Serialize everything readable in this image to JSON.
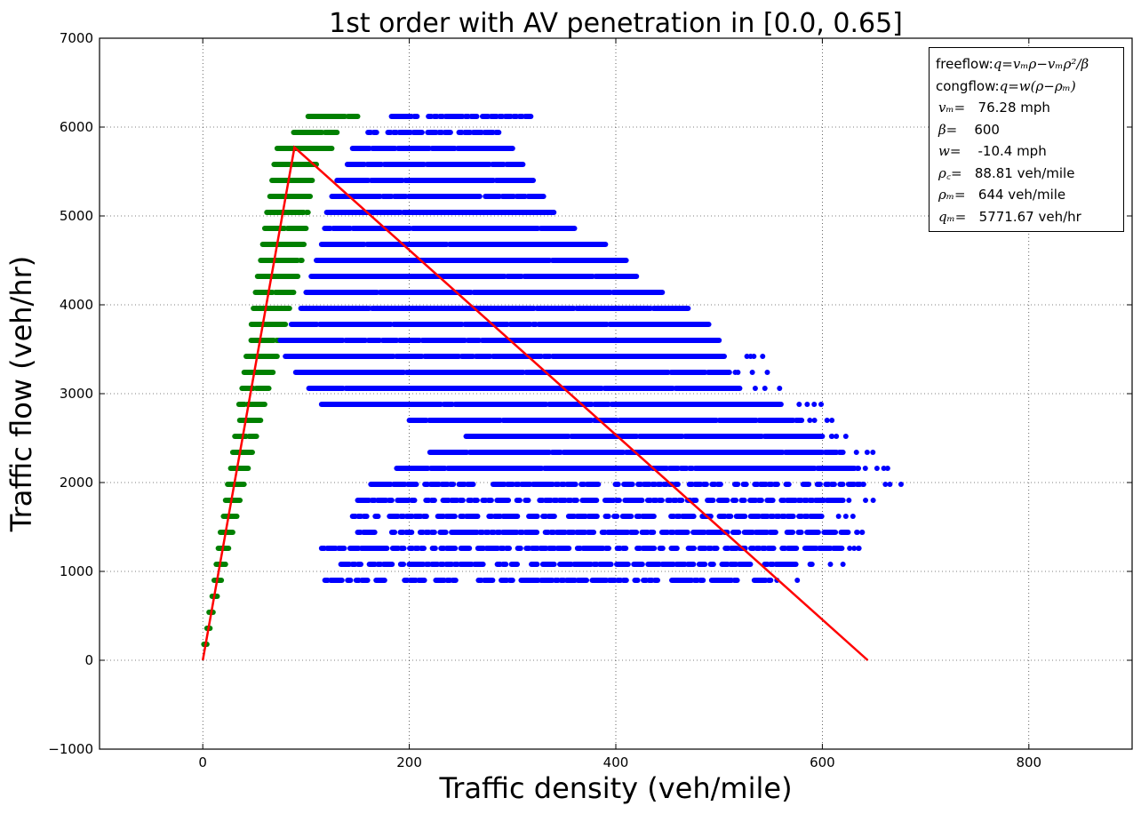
{
  "chart_data": {
    "type": "scatter",
    "title": "1st order with AV penetration in [0.0, 0.65]",
    "xlabel": "Traffic density (veh/mile)",
    "ylabel": "Traffic flow (veh/hr)",
    "xlim": [
      -100,
      900
    ],
    "ylim": [
      -1000,
      7000
    ],
    "xticks": [
      0,
      200,
      400,
      600,
      800
    ],
    "yticks": [
      -1000,
      0,
      1000,
      2000,
      3000,
      4000,
      5000,
      6000,
      7000
    ],
    "xtick_labels": [
      "0",
      "200",
      "400",
      "600",
      "800"
    ],
    "ytick_labels": [
      "−1000",
      "0",
      "1000",
      "2000",
      "3000",
      "4000",
      "5000",
      "6000",
      "7000"
    ],
    "grid": true,
    "flow_levels": [
      180,
      360,
      540,
      720,
      900,
      1080,
      1260,
      1440,
      1620,
      1800,
      1980,
      2160,
      2340,
      2520,
      2700,
      2880,
      3060,
      3240,
      3420,
      3600,
      3780,
      3960,
      4140,
      4320,
      4500,
      4680,
      4860,
      5040,
      5220,
      5400,
      5580,
      5760,
      5940,
      6120
    ],
    "series": [
      {
        "color": "#008000",
        "description": "freeflow data",
        "bands": [
          [
            1,
            4
          ],
          [
            4,
            7
          ],
          [
            6,
            10
          ],
          [
            9,
            14
          ],
          [
            11,
            18
          ],
          [
            13,
            22
          ],
          [
            15,
            25
          ],
          [
            17,
            29
          ],
          [
            20,
            33
          ],
          [
            22,
            36
          ],
          [
            24,
            40
          ],
          [
            27,
            44
          ],
          [
            29,
            48
          ],
          [
            31,
            52
          ],
          [
            33,
            56
          ],
          [
            35,
            60
          ],
          [
            38,
            64
          ],
          [
            40,
            68
          ],
          [
            42,
            72
          ],
          [
            44,
            76
          ],
          [
            47,
            80
          ],
          [
            49,
            84
          ],
          [
            51,
            88
          ],
          [
            53,
            92
          ],
          [
            56,
            96
          ],
          [
            58,
            98
          ],
          [
            60,
            100
          ],
          [
            62,
            102
          ],
          [
            65,
            104
          ],
          [
            67,
            106
          ],
          [
            69,
            110
          ],
          [
            72,
            125
          ],
          [
            88,
            130
          ],
          [
            102,
            150
          ]
        ]
      },
      {
        "color": "#0000ff",
        "description": "congested data",
        "bands": [
          [
            null,
            null
          ],
          [
            null,
            null
          ],
          [
            null,
            null
          ],
          [
            null,
            null
          ],
          [
            110,
            550
          ],
          [
            120,
            590
          ],
          [
            115,
            620
          ],
          [
            150,
            625
          ],
          [
            145,
            600
          ],
          [
            150,
            620
          ],
          [
            160,
            640
          ],
          [
            185,
            635
          ],
          [
            220,
            620
          ],
          [
            255,
            600
          ],
          [
            200,
            580
          ],
          [
            115,
            560
          ],
          [
            100,
            520
          ],
          [
            90,
            510
          ],
          [
            80,
            505
          ],
          [
            75,
            500
          ],
          [
            83,
            490
          ],
          [
            95,
            470
          ],
          [
            100,
            445
          ],
          [
            105,
            420
          ],
          [
            110,
            410
          ],
          [
            115,
            390
          ],
          [
            118,
            360
          ],
          [
            120,
            340
          ],
          [
            125,
            330
          ],
          [
            130,
            320
          ],
          [
            140,
            310
          ],
          [
            145,
            300
          ],
          [
            160,
            290
          ],
          [
            180,
            320
          ]
        ]
      },
      {
        "color": "#ff0000",
        "description": "fitted fundamental diagram",
        "x": [
          0,
          88.81,
          644
        ],
        "y": [
          0,
          5771.67,
          0
        ]
      }
    ],
    "legend": {
      "placement": "top-right",
      "lines": [
        {
          "label": "freeflow: ",
          "value": "q=vₘρ−vₘρ²/β"
        },
        {
          "label": "congflow: ",
          "value": "q=w(ρ−ρₘ)"
        },
        {
          "label": "vₘ=",
          "value": "   76.28 mph"
        },
        {
          "label": "β=",
          "value": "    600"
        },
        {
          "label": "w=",
          "value": "    -10.4 mph"
        },
        {
          "label": "ρ꜀=",
          "value": "   88.81 veh/mile"
        },
        {
          "label": "ρₘ=",
          "value": "   644 veh/mile"
        },
        {
          "label": "qₘ=",
          "value": "   5771.67 veh/hr"
        }
      ]
    }
  }
}
